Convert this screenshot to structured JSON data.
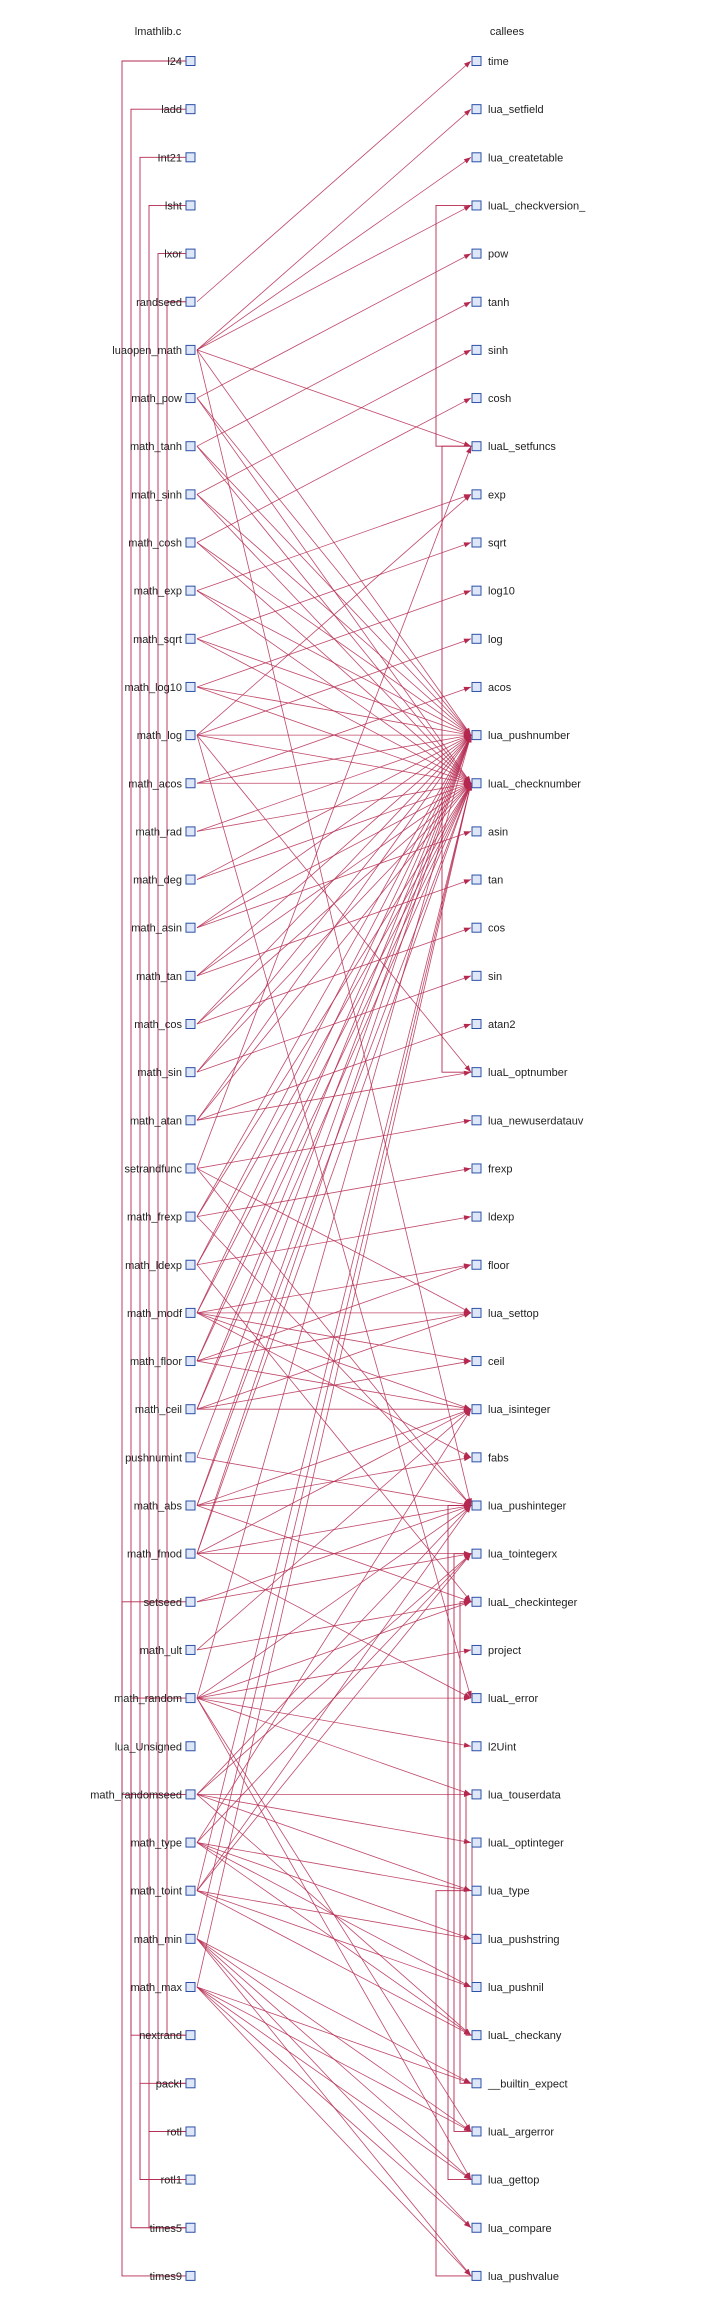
{
  "headers": {
    "left": "lmathlib.c",
    "right": "callees"
  },
  "colors": {
    "edge": "#b5284f",
    "node_fill": "#dde7f7",
    "node_stroke": "#2c4fa8"
  },
  "left_nodes": [
    "l24",
    "ladd",
    "Int21",
    "lsht",
    "lxor",
    "randseed",
    "luaopen_math",
    "math_pow",
    "math_tanh",
    "math_sinh",
    "math_cosh",
    "math_exp",
    "math_sqrt",
    "math_log10",
    "math_log",
    "math_acos",
    "math_rad",
    "math_deg",
    "math_asin",
    "math_tan",
    "math_cos",
    "math_sin",
    "math_atan",
    "setrandfunc",
    "math_frexp",
    "math_ldexp",
    "math_modf",
    "math_floor",
    "math_ceil",
    "pushnumint",
    "math_abs",
    "math_fmod",
    "setseed",
    "math_ult",
    "math_random",
    "lua_Unsigned",
    "math_randomseed",
    "math_type",
    "math_toint",
    "math_min",
    "math_max",
    "nextrand",
    "packI",
    "rotl",
    "rotl1",
    "times5",
    "times9"
  ],
  "right_nodes": [
    "time",
    "lua_setfield",
    "lua_createtable",
    "luaL_checkversion_",
    "pow",
    "tanh",
    "sinh",
    "cosh",
    "luaL_setfuncs",
    "exp",
    "sqrt",
    "log10",
    "log",
    "acos",
    "lua_pushnumber",
    "luaL_checknumber",
    "asin",
    "tan",
    "cos",
    "sin",
    "atan2",
    "luaL_optnumber",
    "lua_newuserdatauv",
    "frexp",
    "ldexp",
    "floor",
    "lua_settop",
    "ceil",
    "lua_isinteger",
    "fabs",
    "lua_pushinteger",
    "lua_tointegerx",
    "luaL_checkinteger",
    "project",
    "luaL_error",
    "l2Uint",
    "lua_touserdata",
    "luaL_optinteger",
    "lua_type",
    "lua_pushstring",
    "lua_pushnil",
    "luaL_checkany",
    "__builtin_expect",
    "luaL_argerror",
    "lua_gettop",
    "lua_compare",
    "lua_pushvalue"
  ],
  "edges": [
    [
      5,
      0
    ],
    [
      6,
      1
    ],
    [
      6,
      2
    ],
    [
      6,
      3
    ],
    [
      6,
      8
    ],
    [
      6,
      14
    ],
    [
      6,
      30
    ],
    [
      7,
      4
    ],
    [
      7,
      14
    ],
    [
      7,
      15
    ],
    [
      8,
      5
    ],
    [
      8,
      14
    ],
    [
      8,
      15
    ],
    [
      9,
      6
    ],
    [
      9,
      14
    ],
    [
      9,
      15
    ],
    [
      10,
      7
    ],
    [
      10,
      14
    ],
    [
      10,
      15
    ],
    [
      11,
      9
    ],
    [
      11,
      14
    ],
    [
      11,
      15
    ],
    [
      12,
      10
    ],
    [
      12,
      14
    ],
    [
      12,
      15
    ],
    [
      13,
      11
    ],
    [
      13,
      14
    ],
    [
      13,
      15
    ],
    [
      14,
      12
    ],
    [
      14,
      14
    ],
    [
      14,
      15
    ],
    [
      14,
      21
    ],
    [
      14,
      34
    ],
    [
      14,
      9
    ],
    [
      15,
      13
    ],
    [
      15,
      14
    ],
    [
      15,
      15
    ],
    [
      16,
      14
    ],
    [
      16,
      15
    ],
    [
      17,
      14
    ],
    [
      17,
      15
    ],
    [
      18,
      16
    ],
    [
      18,
      14
    ],
    [
      18,
      15
    ],
    [
      19,
      17
    ],
    [
      19,
      14
    ],
    [
      19,
      15
    ],
    [
      20,
      18
    ],
    [
      20,
      14
    ],
    [
      20,
      15
    ],
    [
      21,
      19
    ],
    [
      21,
      14
    ],
    [
      21,
      15
    ],
    [
      22,
      20
    ],
    [
      22,
      14
    ],
    [
      22,
      15
    ],
    [
      22,
      21
    ],
    [
      23,
      22
    ],
    [
      23,
      30
    ],
    [
      23,
      8
    ],
    [
      23,
      26
    ],
    [
      24,
      23
    ],
    [
      24,
      14
    ],
    [
      24,
      15
    ],
    [
      24,
      30
    ],
    [
      25,
      24
    ],
    [
      25,
      14
    ],
    [
      25,
      15
    ],
    [
      25,
      32
    ],
    [
      26,
      25
    ],
    [
      26,
      27
    ],
    [
      26,
      14
    ],
    [
      26,
      15
    ],
    [
      26,
      26
    ],
    [
      26,
      28
    ],
    [
      26,
      29
    ],
    [
      27,
      25
    ],
    [
      27,
      14
    ],
    [
      27,
      15
    ],
    [
      27,
      28
    ],
    [
      27,
      26
    ],
    [
      28,
      27
    ],
    [
      28,
      14
    ],
    [
      28,
      15
    ],
    [
      28,
      28
    ],
    [
      28,
      26
    ],
    [
      29,
      30
    ],
    [
      29,
      14
    ],
    [
      30,
      29
    ],
    [
      30,
      14
    ],
    [
      30,
      15
    ],
    [
      30,
      28
    ],
    [
      30,
      30
    ],
    [
      30,
      32
    ],
    [
      31,
      14
    ],
    [
      31,
      15
    ],
    [
      31,
      28
    ],
    [
      31,
      31
    ],
    [
      31,
      34
    ],
    [
      31,
      30
    ],
    [
      32,
      30
    ],
    [
      32,
      31
    ],
    [
      33,
      32
    ],
    [
      33,
      28
    ],
    [
      34,
      32
    ],
    [
      34,
      33
    ],
    [
      34,
      34
    ],
    [
      34,
      35
    ],
    [
      34,
      36
    ],
    [
      34,
      14
    ],
    [
      34,
      30
    ],
    [
      34,
      43
    ],
    [
      34,
      44
    ],
    [
      36,
      31
    ],
    [
      36,
      37
    ],
    [
      36,
      36
    ],
    [
      36,
      41
    ],
    [
      36,
      38
    ],
    [
      36,
      30
    ],
    [
      37,
      38
    ],
    [
      37,
      39
    ],
    [
      37,
      40
    ],
    [
      37,
      41
    ],
    [
      37,
      28
    ],
    [
      37,
      31
    ],
    [
      38,
      31
    ],
    [
      38,
      39
    ],
    [
      38,
      40
    ],
    [
      38,
      41
    ],
    [
      38,
      30
    ],
    [
      38,
      15
    ],
    [
      39,
      43
    ],
    [
      39,
      44
    ],
    [
      39,
      45
    ],
    [
      39,
      46
    ],
    [
      39,
      42
    ],
    [
      39,
      15
    ],
    [
      40,
      43
    ],
    [
      40,
      44
    ],
    [
      40,
      45
    ],
    [
      40,
      46
    ],
    [
      40,
      42
    ],
    [
      40,
      15
    ]
  ],
  "left_tree": [
    {
      "from": 0,
      "to": 46
    },
    {
      "from": 1,
      "to": 45
    },
    {
      "from": 2,
      "to": 44
    },
    {
      "from": 3,
      "to": 43
    },
    {
      "from": 4,
      "to": 42
    },
    {
      "from": 5,
      "to": 41
    },
    {
      "from": 32,
      "to": 36
    },
    {
      "from": 41,
      "to": 34
    },
    {
      "from": 42,
      "to": 44
    },
    {
      "from": 43,
      "to": 45
    }
  ],
  "right_tree": [
    {
      "from": 3,
      "to": 8
    },
    {
      "from": 8,
      "to": 21
    },
    {
      "from": 30,
      "to": 44
    },
    {
      "from": 31,
      "to": 43
    },
    {
      "from": 32,
      "to": 42
    },
    {
      "from": 36,
      "to": 41
    },
    {
      "from": 37,
      "to": 40
    },
    {
      "from": 38,
      "to": 46
    }
  ]
}
